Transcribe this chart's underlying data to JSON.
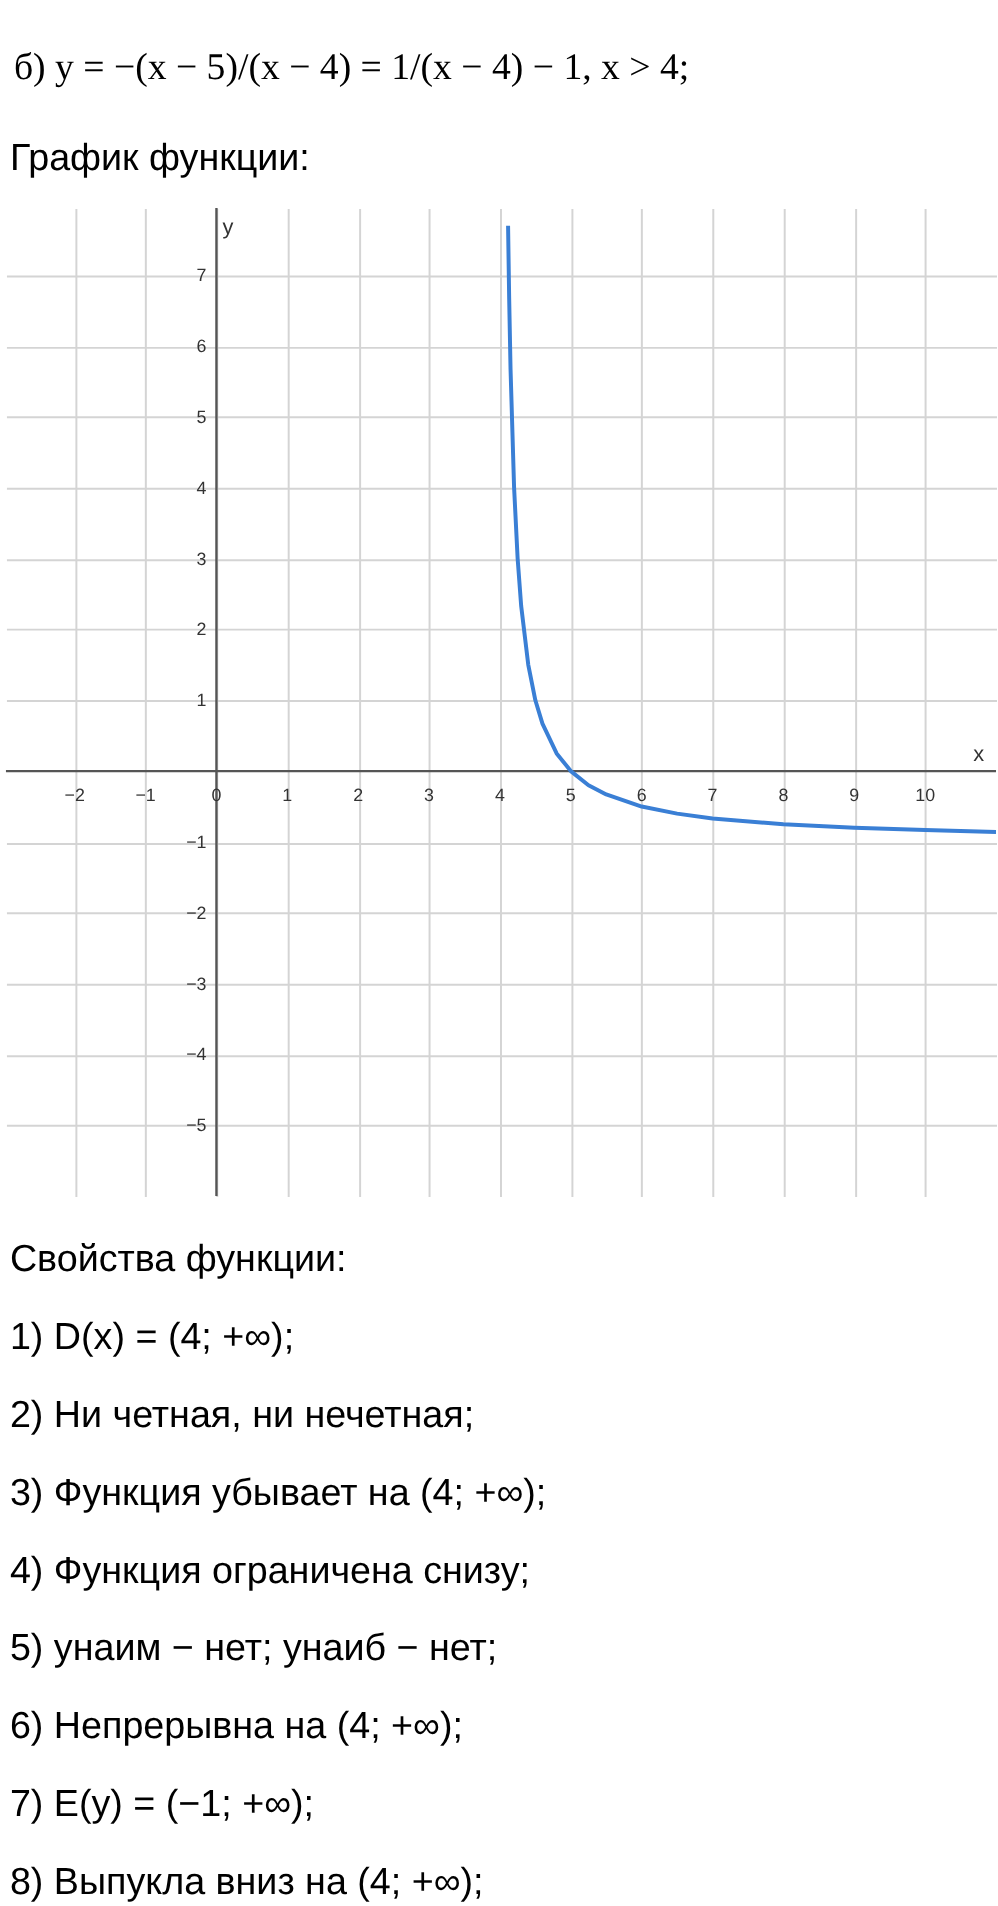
{
  "chart_data": {
    "type": "line",
    "title": "б) y = −(x − 5)/(x − 4) = 1/(x − 4) − 1,  x > 4;",
    "subtitle": "График функции:",
    "xlabel": "x",
    "ylabel": "y",
    "xlim": [
      -2.97,
      11
    ],
    "ylim": [
      -6,
      7.95
    ],
    "xticks": [
      -2,
      -1,
      0,
      1,
      2,
      3,
      4,
      5,
      6,
      7,
      8,
      9,
      10
    ],
    "yticks": [
      -5,
      -4,
      -3,
      -2,
      -1,
      1,
      2,
      3,
      4,
      5,
      6,
      7
    ],
    "grid": true,
    "marker": "none",
    "line_style": "solid",
    "series": [
      {
        "color": "#3a7fd5",
        "x": [
          4.115,
          4.13,
          4.15,
          4.2,
          4.25,
          4.3,
          4.4,
          4.5,
          4.6,
          4.8,
          5,
          5.25,
          5.5,
          6,
          6.5,
          7,
          8,
          9,
          10,
          11
        ],
        "values": [
          7.7,
          6.7,
          5.67,
          4.0,
          3.0,
          2.33,
          1.5,
          1.0,
          0.67,
          0.25,
          0,
          -0.2,
          -0.33,
          -0.5,
          -0.6,
          -0.67,
          -0.75,
          -0.8,
          -0.83,
          -0.86
        ]
      }
    ],
    "annotations": [
      "Свойства функции:",
      "1) D(x) = (4; +∞);",
      "2) Ни четная, ни нечетная;",
      "3) Функция убывает на (4; +∞);",
      "4) Функция ограничена снизу;",
      "5) yнаим − нет; yнаиб − нет;",
      "6) Непрерывна на (4; +∞);",
      "7) E(y) = (−1; +∞);",
      "8) Выпукла вниз на (4; +∞);"
    ]
  }
}
